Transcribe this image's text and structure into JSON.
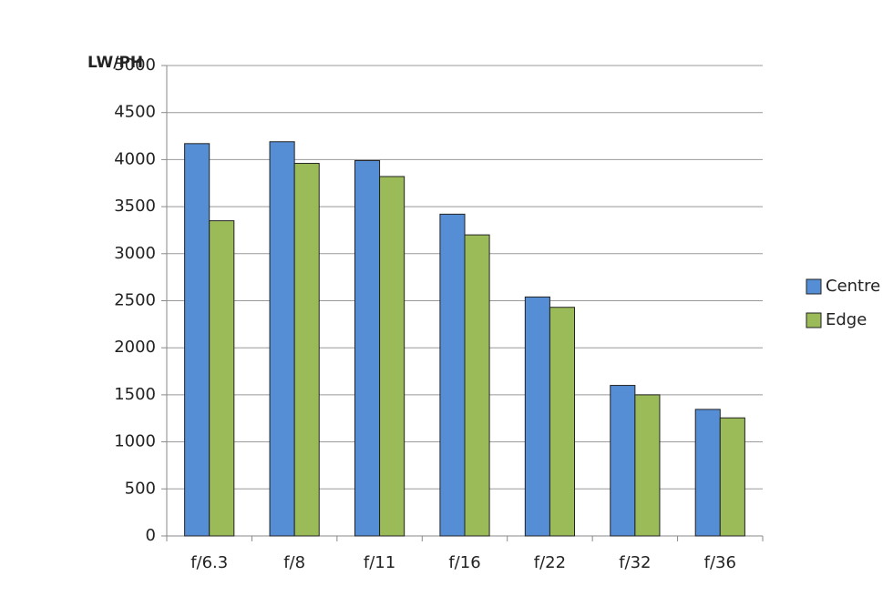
{
  "chart_data": {
    "type": "bar",
    "y_axis_label": "LW/PH",
    "categories": [
      "f/6.3",
      "f/8",
      "f/11",
      "f/16",
      "f/22",
      "f/32",
      "f/36"
    ],
    "series": [
      {
        "name": "Centre",
        "color": "#558ed5",
        "values": [
          4170,
          4190,
          3990,
          3420,
          2540,
          1600,
          1345
        ]
      },
      {
        "name": "Edge",
        "color": "#9bbb59",
        "values": [
          3350,
          3960,
          3820,
          3200,
          2430,
          1500,
          1255
        ]
      }
    ],
    "ylim": [
      0,
      5000
    ],
    "yticks": [
      0,
      500,
      1000,
      1500,
      2000,
      2500,
      3000,
      3500,
      4000,
      4500,
      5000
    ],
    "grid": true,
    "legend": "right"
  }
}
